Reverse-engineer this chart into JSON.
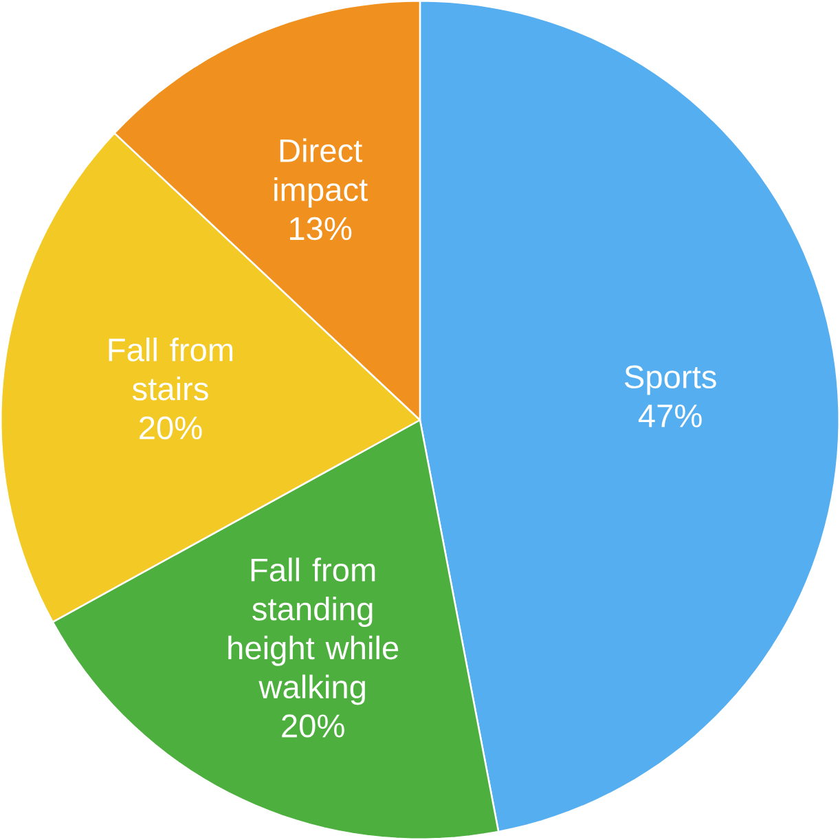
{
  "chart_data": {
    "type": "pie",
    "categories": [
      "Sports",
      "Fall from standing height while walking",
      "Fall from stairs",
      "Direct impact"
    ],
    "values": [
      47,
      20,
      20,
      13
    ],
    "value_labels": [
      "47%",
      "20%",
      "20%",
      "13%"
    ],
    "colors": [
      "#55aef0",
      "#4caf3e",
      "#f2c925",
      "#f0911f"
    ]
  }
}
